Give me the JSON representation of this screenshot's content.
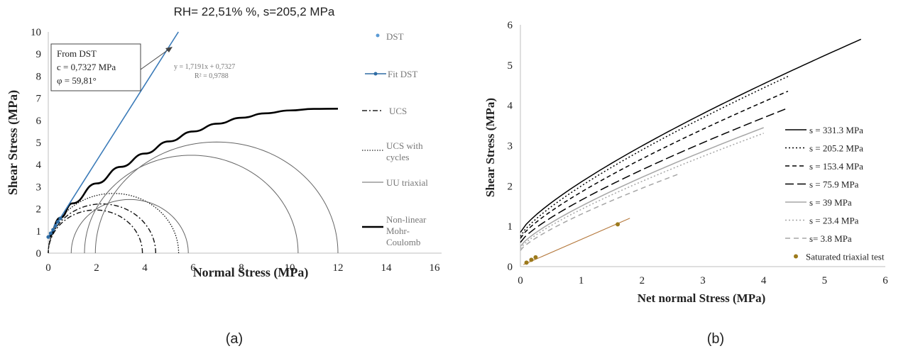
{
  "chart_data": [
    {
      "panel_label": "(a)",
      "type": "scatter",
      "title": "RH= 22,51% %, s=205,2 MPa",
      "xlabel": "Normal Stress (MPa)",
      "ylabel": "Shear Stress (MPa)",
      "xlim": [
        0,
        16
      ],
      "ylim": [
        0,
        10
      ],
      "xticks": [
        "0",
        "2",
        "4",
        "6",
        "8",
        "10",
        "12",
        "14",
        "16"
      ],
      "yticks": [
        "0",
        "1",
        "2",
        "3",
        "4",
        "5",
        "6",
        "7",
        "8",
        "9",
        "10"
      ],
      "grid": false,
      "legend_position": "right",
      "legend": [
        "DST",
        "Fit DST",
        "UCS",
        "UCS with cycles",
        "UU triaxial",
        "Non-linear Mohr-Coulomb"
      ],
      "annotation_box": {
        "line1": "From DST",
        "line2": "c = 0,7327 MPa",
        "line3": "φ = 59,81°"
      },
      "fit_equation": "y = 1,7191x + 0,7327",
      "fit_r2": "R² = 0,9788",
      "dst_points": {
        "x": [
          0.0,
          0.1,
          0.2,
          0.3,
          0.4,
          0.5
        ],
        "y": [
          0.73,
          0.9,
          1.06,
          1.24,
          1.42,
          1.57
        ]
      },
      "fit_line": {
        "slope": 1.7191,
        "intercept": 0.7327
      },
      "circles": [
        {
          "name": "UCS",
          "sigma3": 0.0,
          "sigma1": 3.9
        },
        {
          "name": "UCS",
          "sigma3": 0.0,
          "sigma1": 4.45
        },
        {
          "name": "UCS with cycles",
          "sigma3": 0.0,
          "sigma1": 5.4
        },
        {
          "name": "UU triaxial",
          "sigma3": 0.95,
          "sigma1": 5.8
        },
        {
          "name": "UU triaxial",
          "sigma3": 1.5,
          "sigma1": 10.35
        },
        {
          "name": "UU triaxial",
          "sigma3": 1.95,
          "sigma1": 12.0
        }
      ],
      "envelope": {
        "name": "Non-linear Mohr-Coulomb",
        "x": [
          0,
          0.5,
          1,
          2,
          3,
          4,
          5,
          6,
          7,
          8,
          9,
          10,
          11,
          12
        ],
        "y": [
          0.73,
          1.6,
          2.25,
          3.15,
          3.9,
          4.5,
          5.05,
          5.5,
          5.85,
          6.12,
          6.32,
          6.45,
          6.52,
          6.53
        ]
      }
    },
    {
      "panel_label": "(b)",
      "type": "line",
      "xlabel": "Net normal Stress (MPa)",
      "ylabel": "Shear Stress (MPa)",
      "xlim": [
        0,
        6
      ],
      "ylim": [
        0,
        6
      ],
      "xticks": [
        "0",
        "1",
        "2",
        "3",
        "4",
        "5",
        "6"
      ],
      "yticks": [
        "0",
        "1",
        "2",
        "3",
        "4",
        "5",
        "6"
      ],
      "grid": false,
      "legend_position": "right",
      "series": [
        {
          "name": "s = 331.3 MPa",
          "x_end": 5.6,
          "y0": 0.85,
          "k": 1.25,
          "n": 0.78,
          "color": "#000000",
          "dash": ""
        },
        {
          "name": "s = 205.2 MPa",
          "x_end": 4.4,
          "y0": 0.75,
          "k": 1.25,
          "n": 0.78,
          "color": "#000000",
          "dash": "2,3"
        },
        {
          "name": "s = 153.4 MPa",
          "x_end": 4.4,
          "y0": 0.7,
          "k": 1.15,
          "n": 0.78,
          "color": "#000000",
          "dash": "6,4"
        },
        {
          "name": "s = 75.9 MPa",
          "x_end": 4.4,
          "y0": 0.6,
          "k": 1.05,
          "n": 0.78,
          "color": "#000000",
          "dash": "12,5"
        },
        {
          "name": "s = 39 MPa",
          "x_end": 4.0,
          "y0": 0.5,
          "k": 1.0,
          "n": 0.78,
          "color": "#a6a6a6",
          "dash": ""
        },
        {
          "name": "s = 23.4 MPa",
          "x_end": 4.0,
          "y0": 0.45,
          "k": 0.97,
          "n": 0.78,
          "color": "#a6a6a6",
          "dash": "2,3"
        },
        {
          "name": "s= 3.8 MPa",
          "x_end": 2.6,
          "y0": 0.4,
          "k": 0.9,
          "n": 0.78,
          "color": "#a6a6a6",
          "dash": "7,5"
        }
      ],
      "saturated_triaxial_test": {
        "name": "Saturated triaxial test",
        "color": "#9c7a1c",
        "points": {
          "x": [
            0.1,
            0.18,
            0.25,
            1.6
          ],
          "y": [
            0.1,
            0.17,
            0.23,
            1.05
          ]
        },
        "fit_line": {
          "x": [
            0.05,
            1.8
          ],
          "y": [
            0.05,
            1.2
          ]
        }
      }
    }
  ]
}
